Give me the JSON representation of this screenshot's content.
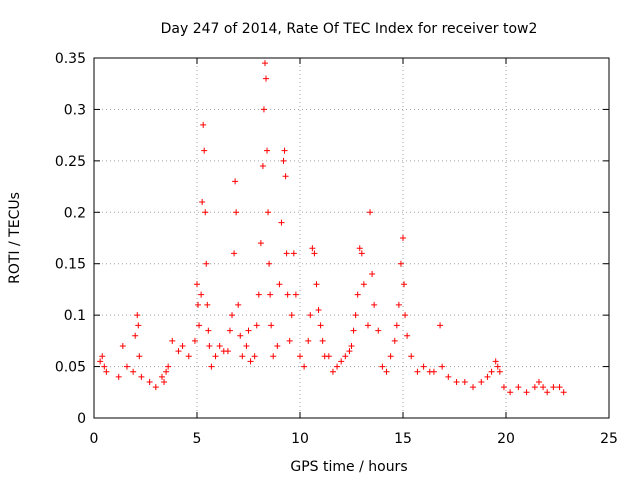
{
  "chart_data": {
    "type": "scatter",
    "title": "Day 247 of 2014, Rate Of TEC Index for receiver tow2",
    "xlabel": "GPS time / hours",
    "ylabel": "ROTI / TECUs",
    "xlim": [
      0,
      25
    ],
    "ylim": [
      0,
      0.35
    ],
    "xticks": [
      "0",
      "5",
      "10",
      "15",
      "20",
      "25"
    ],
    "yticks": [
      "0",
      "0.05",
      "0.1",
      "0.15",
      "0.2",
      "0.25",
      "0.3",
      "0.35"
    ],
    "grid": true,
    "marker": "plus",
    "color": "#ff0000",
    "series": [
      {
        "x": [
          0.3,
          0.4,
          0.5,
          0.6,
          1.2,
          1.4,
          1.6,
          1.9,
          2.0,
          2.1,
          2.15,
          2.2,
          2.3,
          2.7,
          3.0,
          3.3,
          3.4,
          3.5,
          3.6,
          3.8,
          4.1,
          4.3,
          4.6,
          4.9,
          5.0,
          5.05,
          5.1,
          5.2,
          5.25,
          5.3,
          5.35,
          5.4,
          5.45,
          5.5,
          5.55,
          5.6,
          5.7,
          5.9,
          6.1,
          6.3,
          6.5,
          6.6,
          6.7,
          6.8,
          6.85,
          6.9,
          7.0,
          7.1,
          7.2,
          7.4,
          7.5,
          7.6,
          7.8,
          7.9,
          8.0,
          8.1,
          8.2,
          8.25,
          8.3,
          8.35,
          8.4,
          8.45,
          8.5,
          8.55,
          8.6,
          8.7,
          8.9,
          9.0,
          9.1,
          9.2,
          9.25,
          9.3,
          9.35,
          9.4,
          9.5,
          9.6,
          9.7,
          9.8,
          10.0,
          10.2,
          10.4,
          10.5,
          10.6,
          10.7,
          10.8,
          10.9,
          11.0,
          11.1,
          11.2,
          11.4,
          11.6,
          11.8,
          12.0,
          12.2,
          12.4,
          12.5,
          12.6,
          12.7,
          12.8,
          12.9,
          13.0,
          13.1,
          13.3,
          13.4,
          13.5,
          13.6,
          13.8,
          14.0,
          14.2,
          14.4,
          14.6,
          14.7,
          14.8,
          14.9,
          15.0,
          15.05,
          15.1,
          15.2,
          15.4,
          15.7,
          16.0,
          16.3,
          16.5,
          16.8,
          16.9,
          17.2,
          17.6,
          18.0,
          18.4,
          18.8,
          19.1,
          19.3,
          19.5,
          19.6,
          19.7,
          19.9,
          20.2,
          20.6,
          21.0,
          21.4,
          21.6,
          21.8,
          22.0,
          22.3,
          22.6,
          22.8
        ],
        "y": [
          0.055,
          0.06,
          0.05,
          0.045,
          0.04,
          0.07,
          0.05,
          0.045,
          0.08,
          0.1,
          0.09,
          0.06,
          0.04,
          0.035,
          0.03,
          0.04,
          0.035,
          0.045,
          0.05,
          0.075,
          0.065,
          0.07,
          0.06,
          0.075,
          0.13,
          0.11,
          0.09,
          0.12,
          0.21,
          0.285,
          0.26,
          0.2,
          0.15,
          0.11,
          0.085,
          0.07,
          0.05,
          0.06,
          0.07,
          0.065,
          0.065,
          0.085,
          0.1,
          0.16,
          0.23,
          0.2,
          0.11,
          0.08,
          0.06,
          0.07,
          0.085,
          0.055,
          0.06,
          0.09,
          0.12,
          0.17,
          0.245,
          0.3,
          0.345,
          0.33,
          0.26,
          0.2,
          0.15,
          0.12,
          0.09,
          0.06,
          0.07,
          0.13,
          0.19,
          0.25,
          0.26,
          0.235,
          0.16,
          0.12,
          0.075,
          0.1,
          0.16,
          0.12,
          0.06,
          0.05,
          0.075,
          0.1,
          0.165,
          0.16,
          0.13,
          0.105,
          0.09,
          0.075,
          0.06,
          0.06,
          0.045,
          0.05,
          0.055,
          0.06,
          0.065,
          0.07,
          0.085,
          0.1,
          0.12,
          0.165,
          0.16,
          0.13,
          0.09,
          0.2,
          0.14,
          0.11,
          0.085,
          0.05,
          0.045,
          0.06,
          0.075,
          0.09,
          0.11,
          0.15,
          0.175,
          0.13,
          0.1,
          0.08,
          0.06,
          0.045,
          0.05,
          0.045,
          0.045,
          0.09,
          0.05,
          0.04,
          0.035,
          0.035,
          0.03,
          0.035,
          0.04,
          0.045,
          0.055,
          0.05,
          0.045,
          0.03,
          0.025,
          0.03,
          0.025,
          0.03,
          0.035,
          0.03,
          0.025,
          0.03,
          0.03,
          0.025
        ]
      }
    ]
  }
}
